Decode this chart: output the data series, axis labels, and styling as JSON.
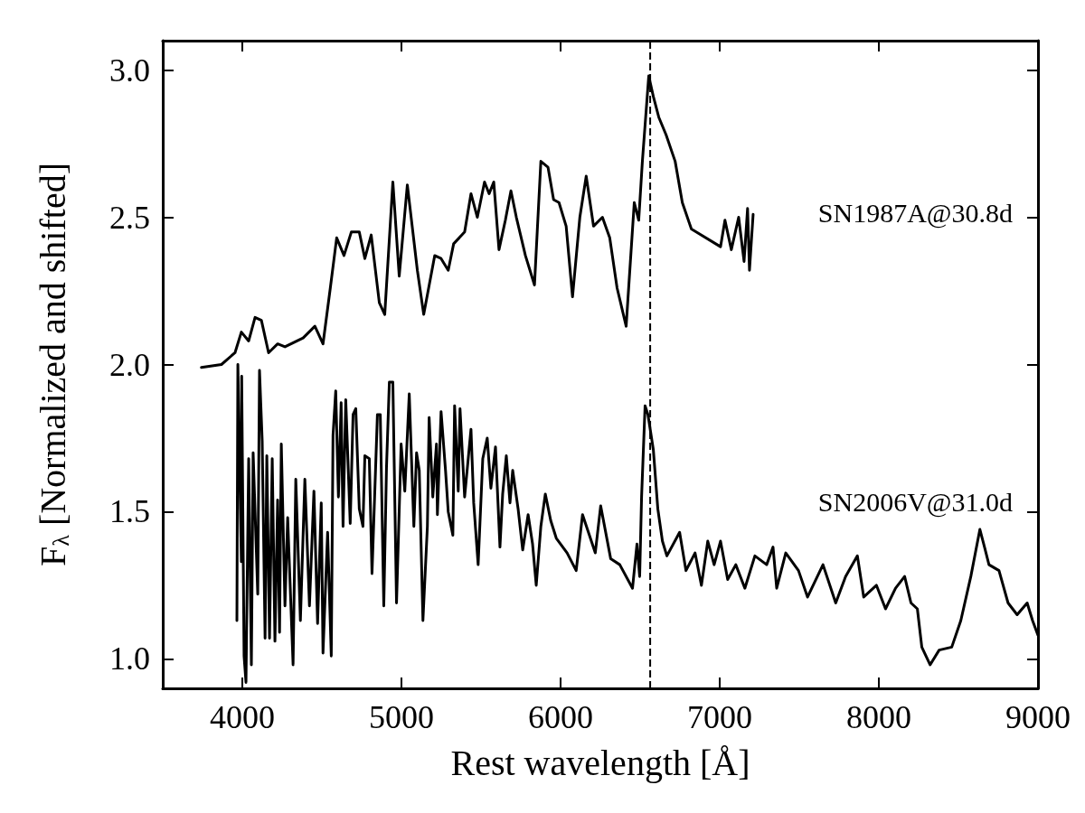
{
  "chart_data": {
    "type": "line",
    "xlabel": "Rest wavelength [Å]",
    "ylabel": "F$_{λ}$ [Normalized and shifted]",
    "xlim": [
      3500,
      9000
    ],
    "xticks": [
      4000,
      5000,
      6000,
      7000,
      8000,
      9000
    ],
    "ylim": [
      0.9,
      3.1
    ],
    "yticks": [
      {
        "value": 1,
        "label": "1.0"
      },
      {
        "value": 1.5,
        "label": "1.5"
      },
      {
        "value": 2,
        "label": "2.0"
      },
      {
        "value": 2.5,
        "label": "2.5"
      },
      {
        "value": 3,
        "label": "3.0"
      }
    ],
    "grid": false,
    "marker": "none",
    "line_style": "solid",
    "ref_lines": [
      {
        "axis": "x",
        "value": 6563,
        "color": "#000000",
        "line_style": "dashed"
      }
    ],
    "annotations": [
      "SN1987A@30.8d",
      "SN2006V@31.0d"
    ],
    "series": [
      {
        "color": "#000000",
        "x": [
          3743,
          3869,
          3954,
          3994,
          4040,
          4080,
          4120,
          4165,
          4222,
          4268,
          4382,
          4456,
          4507,
          4553,
          4593,
          4639,
          4685,
          4735,
          4770,
          4810,
          4861,
          4895,
          4946,
          4986,
          5037,
          5100,
          5140,
          5209,
          5249,
          5294,
          5328,
          5397,
          5437,
          5477,
          5522,
          5551,
          5580,
          5613,
          5653,
          5688,
          5722,
          5779,
          5836,
          5876,
          5921,
          5956,
          5990,
          6035,
          6075,
          6121,
          6161,
          6207,
          6263,
          6309,
          6355,
          6412,
          6463,
          6491,
          6514,
          6554,
          6583,
          6617,
          6663,
          6720,
          6765,
          6822,
          7005,
          7033,
          7073,
          7119,
          7153,
          7175,
          7187,
          7210
        ],
        "values": [
          1.99,
          2.0,
          2.04,
          2.11,
          2.08,
          2.16,
          2.15,
          2.04,
          2.07,
          2.06,
          2.09,
          2.13,
          2.07,
          2.26,
          2.43,
          2.37,
          2.45,
          2.45,
          2.36,
          2.44,
          2.21,
          2.17,
          2.62,
          2.3,
          2.61,
          2.32,
          2.17,
          2.37,
          2.36,
          2.32,
          2.41,
          2.45,
          2.58,
          2.5,
          2.62,
          2.58,
          2.62,
          2.39,
          2.49,
          2.59,
          2.5,
          2.37,
          2.27,
          2.69,
          2.67,
          2.56,
          2.55,
          2.47,
          2.23,
          2.5,
          2.64,
          2.47,
          2.5,
          2.43,
          2.26,
          2.13,
          2.55,
          2.49,
          2.69,
          2.98,
          2.91,
          2.84,
          2.78,
          2.69,
          2.55,
          2.46,
          2.4,
          2.49,
          2.39,
          2.5,
          2.35,
          2.53,
          2.32,
          2.51
        ]
      },
      {
        "color": "#000000",
        "x": [
          3966,
          3972,
          3994,
          3996,
          4011,
          4023,
          4040,
          4057,
          4068,
          4097,
          4108,
          4125,
          4143,
          4154,
          4171,
          4188,
          4205,
          4222,
          4234,
          4245,
          4268,
          4285,
          4319,
          4336,
          4365,
          4393,
          4422,
          4450,
          4473,
          4496,
          4507,
          4536,
          4559,
          4570,
          4587,
          4604,
          4621,
          4633,
          4650,
          4678,
          4696,
          4713,
          4735,
          4758,
          4770,
          4798,
          4815,
          4849,
          4867,
          4889,
          4906,
          4924,
          4946,
          4969,
          4998,
          5021,
          5049,
          5078,
          5095,
          5112,
          5135,
          5163,
          5174,
          5197,
          5220,
          5226,
          5249,
          5277,
          5294,
          5323,
          5334,
          5357,
          5368,
          5397,
          5437,
          5454,
          5482,
          5511,
          5539,
          5562,
          5591,
          5619,
          5636,
          5659,
          5682,
          5699,
          5733,
          5762,
          5796,
          5824,
          5847,
          5876,
          5904,
          5938,
          5973,
          6041,
          6098,
          6138,
          6218,
          6252,
          6315,
          6372,
          6452,
          6480,
          6497,
          6509,
          6531,
          6549,
          6583,
          6611,
          6640,
          6668,
          6748,
          6788,
          6845,
          6885,
          6925,
          6965,
          7005,
          7050,
          7101,
          7158,
          7221,
          7295,
          7335,
          7358,
          7415,
          7495,
          7552,
          7649,
          7729,
          7791,
          7865,
          7905,
          7985,
          8042,
          8105,
          8162,
          8202,
          8242,
          8270,
          8322,
          8379,
          8458,
          8515,
          8578,
          8635,
          8664,
          8692,
          8755,
          8812,
          8869,
          8932,
          8966,
          9000
        ],
        "values": [
          1.13,
          2.0,
          1.33,
          1.96,
          1.01,
          0.92,
          1.68,
          0.98,
          1.7,
          1.22,
          1.98,
          1.74,
          1.07,
          1.69,
          1.07,
          1.68,
          1.06,
          1.54,
          1.09,
          1.73,
          1.18,
          1.48,
          0.98,
          1.61,
          1.13,
          1.61,
          1.18,
          1.57,
          1.12,
          1.53,
          1.02,
          1.43,
          1.01,
          1.76,
          1.91,
          1.55,
          1.87,
          1.45,
          1.88,
          1.46,
          1.83,
          1.85,
          1.51,
          1.45,
          1.69,
          1.68,
          1.29,
          1.83,
          1.83,
          1.18,
          1.65,
          1.94,
          1.94,
          1.19,
          1.73,
          1.57,
          1.9,
          1.45,
          1.7,
          1.64,
          1.13,
          1.45,
          1.82,
          1.55,
          1.73,
          1.49,
          1.84,
          1.64,
          1.5,
          1.42,
          1.86,
          1.57,
          1.85,
          1.55,
          1.78,
          1.53,
          1.32,
          1.68,
          1.75,
          1.58,
          1.72,
          1.38,
          1.56,
          1.69,
          1.53,
          1.64,
          1.51,
          1.37,
          1.49,
          1.39,
          1.25,
          1.45,
          1.56,
          1.47,
          1.41,
          1.36,
          1.3,
          1.49,
          1.36,
          1.52,
          1.34,
          1.32,
          1.24,
          1.39,
          1.28,
          1.55,
          1.86,
          1.83,
          1.71,
          1.51,
          1.4,
          1.35,
          1.43,
          1.3,
          1.36,
          1.25,
          1.4,
          1.32,
          1.4,
          1.27,
          1.32,
          1.24,
          1.35,
          1.32,
          1.38,
          1.24,
          1.36,
          1.3,
          1.21,
          1.32,
          1.19,
          1.28,
          1.35,
          1.21,
          1.25,
          1.17,
          1.24,
          1.28,
          1.19,
          1.17,
          1.04,
          0.98,
          1.03,
          1.04,
          1.13,
          1.28,
          1.44,
          1.38,
          1.32,
          1.3,
          1.19,
          1.15,
          1.19,
          1.13,
          1.08
        ]
      }
    ]
  }
}
